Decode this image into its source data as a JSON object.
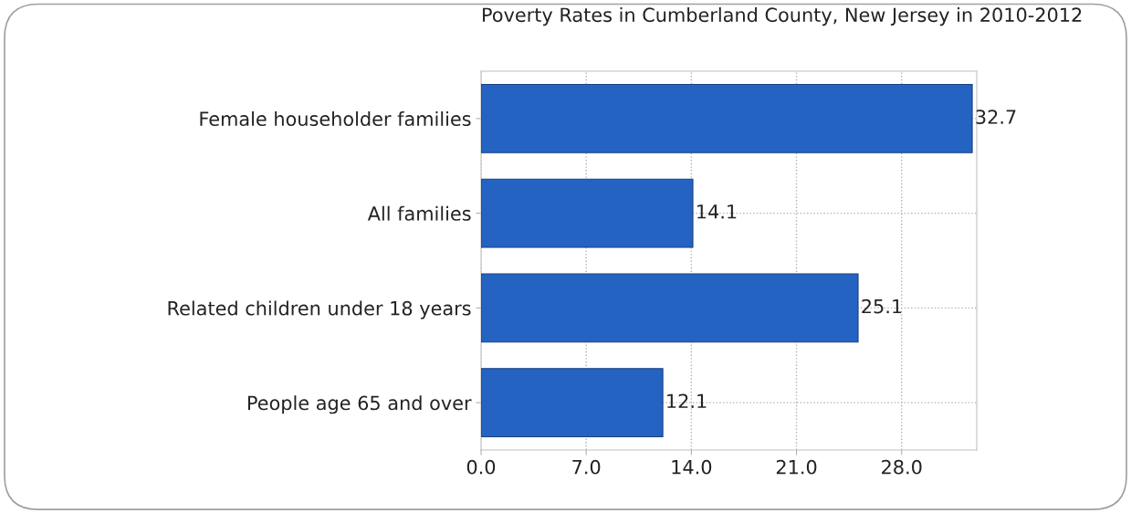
{
  "chart_data": {
    "type": "bar",
    "orientation": "horizontal",
    "title": "Poverty Rates in Cumberland County, New Jersey in 2010-2012",
    "categories": [
      "Female householder families",
      "All families",
      "Related children under 18 years",
      "People age 65 and over"
    ],
    "values": [
      32.7,
      14.1,
      25.1,
      12.1
    ],
    "color": "#2463c1",
    "xlim": [
      0,
      33
    ],
    "xticks": [
      {
        "value": 0,
        "label": "0.0"
      },
      {
        "value": 7,
        "label": "7.0"
      },
      {
        "value": 14,
        "label": "14.0"
      },
      {
        "value": 21,
        "label": "21.0"
      },
      {
        "value": 28,
        "label": "28.0"
      }
    ],
    "grid": true,
    "data_labels": true
  }
}
